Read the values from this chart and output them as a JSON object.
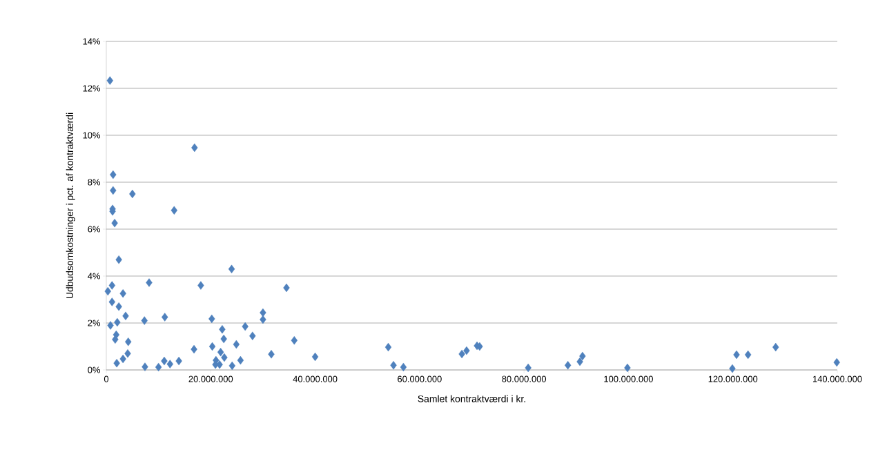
{
  "chart_data": {
    "type": "scatter",
    "xlabel": "Samlet kontraktværdi i kr.",
    "ylabel": "Udbudsomkostninger i pct. af kontraktværdi",
    "x": [
      700000,
      1300000,
      1300000,
      5000000,
      1200000,
      1200000,
      1600000,
      13000000,
      16900000,
      2400000,
      300000,
      1100000,
      3200000,
      8200000,
      18100000,
      24000000,
      34500000,
      1100000,
      2400000,
      3700000,
      7300000,
      11200000,
      20200000,
      30000000,
      30000000,
      26600000,
      22200000,
      22500000,
      28000000,
      24900000,
      20300000,
      16800000,
      36000000,
      31600000,
      40000000,
      800000,
      2100000,
      1900000,
      1700000,
      4200000,
      4100000,
      3200000,
      2000000,
      7400000,
      10000000,
      11100000,
      12200000,
      13900000,
      21000000,
      21900000,
      22600000,
      20900000,
      21700000,
      24100000,
      25700000,
      54000000,
      55000000,
      56900000,
      68100000,
      69000000,
      71000000,
      71500000,
      80800000,
      88400000,
      90700000,
      91200000,
      99800000,
      119900000,
      120700000,
      122900000,
      128200000,
      139900000
    ],
    "values": [
      12.33,
      8.32,
      7.65,
      7.5,
      6.86,
      6.76,
      6.26,
      6.8,
      9.47,
      4.7,
      3.35,
      3.6,
      3.26,
      3.72,
      3.6,
      4.3,
      3.5,
      2.9,
      2.7,
      2.3,
      2.1,
      2.25,
      2.18,
      2.44,
      2.15,
      1.85,
      1.73,
      1.32,
      1.45,
      1.09,
      1.0,
      0.88,
      1.26,
      0.67,
      0.56,
      1.9,
      2.03,
      1.5,
      1.3,
      1.2,
      0.7,
      0.47,
      0.29,
      0.13,
      0.12,
      0.38,
      0.25,
      0.38,
      0.41,
      0.76,
      0.53,
      0.23,
      0.23,
      0.18,
      0.41,
      0.97,
      0.2,
      0.12,
      0.68,
      0.82,
      1.03,
      1.0,
      0.09,
      0.2,
      0.35,
      0.59,
      0.09,
      0.06,
      0.65,
      0.65,
      0.97,
      0.32
    ],
    "color": "#4f81bd",
    "marker": "diamond",
    "grid": "y",
    "xlim": [
      0,
      140000000
    ],
    "ylim": [
      0,
      14
    ],
    "xticks": [
      {
        "value": 0,
        "label": "0"
      },
      {
        "value": 20000000,
        "label": "20.000.000"
      },
      {
        "value": 40000000,
        "label": "40.000.000"
      },
      {
        "value": 60000000,
        "label": "60.000.000"
      },
      {
        "value": 80000000,
        "label": "80.000.000"
      },
      {
        "value": 100000000,
        "label": "100.000.000"
      },
      {
        "value": 120000000,
        "label": "120.000.000"
      },
      {
        "value": 140000000,
        "label": "140.000.000"
      }
    ],
    "yticks": [
      {
        "value": 0,
        "label": "0%"
      },
      {
        "value": 2,
        "label": "2%"
      },
      {
        "value": 4,
        "label": "4%"
      },
      {
        "value": 6,
        "label": "6%"
      },
      {
        "value": 8,
        "label": "8%"
      },
      {
        "value": 10,
        "label": "10%"
      },
      {
        "value": 12,
        "label": "12%"
      },
      {
        "value": 14,
        "label": "14%"
      }
    ]
  }
}
